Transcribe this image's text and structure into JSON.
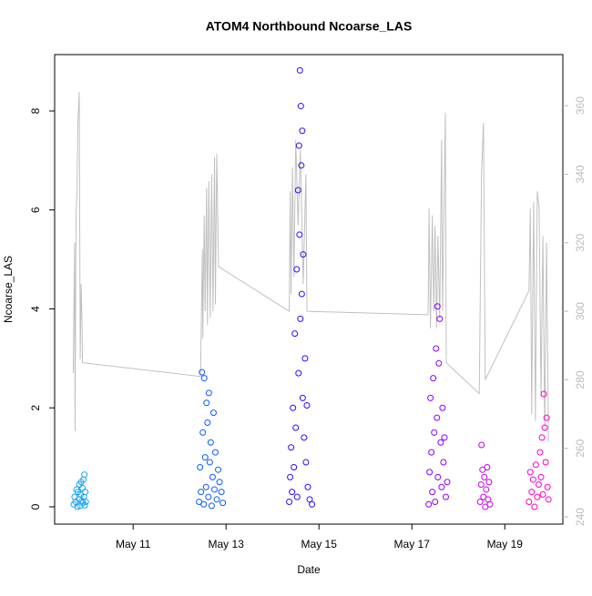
{
  "chart_data": {
    "type": "scatter",
    "title": "ATOM4 Northbound Ncoarse_LAS",
    "x_label": "Date",
    "y_label": "Ncoarse_LAS",
    "xlim": [
      9.31,
      20.25
    ],
    "ylim": [
      -0.35,
      9.14
    ],
    "y2lim": [
      237.9,
      374.9
    ],
    "xticks": [
      {
        "value": 11,
        "label": "May 11"
      },
      {
        "value": 13,
        "label": "May 13"
      },
      {
        "value": 15,
        "label": "May 15"
      },
      {
        "value": 17,
        "label": "May 17"
      },
      {
        "value": 19,
        "label": "May 19"
      }
    ],
    "yticks": [
      0,
      2,
      4,
      6,
      8
    ],
    "y2ticks": [
      240,
      260,
      280,
      300,
      320,
      340,
      360
    ],
    "series": [
      {
        "color": "#c0c0c0",
        "axis": "y2",
        "x": [
          9.71,
          9.74,
          9.75,
          9.77,
          9.79,
          9.81,
          9.84,
          9.86,
          9.88,
          9.9,
          9.91,
          12.45,
          12.47,
          12.49,
          12.5,
          12.53,
          12.55,
          12.58,
          12.6,
          12.63,
          12.66,
          12.69,
          12.72,
          12.75,
          12.77,
          12.8,
          12.84,
          14.36,
          14.38,
          14.4,
          14.43,
          14.46,
          14.5,
          14.55,
          14.6,
          14.66,
          14.72,
          14.74,
          17.35,
          17.37,
          17.4,
          17.44,
          17.47,
          17.5,
          17.53,
          17.56,
          17.6,
          17.64,
          17.66,
          17.72,
          17.74,
          18.45,
          18.5,
          18.54,
          18.58,
          19.52,
          19.55,
          19.58,
          19.62,
          19.66,
          19.7,
          19.74,
          19.78,
          19.82,
          19.86,
          19.9,
          19.94
        ],
        "values": [
          282,
          320,
          265,
          328,
          335,
          355,
          364,
          286,
          308,
          296,
          285,
          281,
          300,
          318,
          292,
          328,
          300,
          336,
          296,
          338,
          298,
          340,
          300,
          345,
          302,
          346,
          313,
          300,
          335,
          305,
          342,
          310,
          350,
          325,
          347,
          308,
          340,
          300,
          299,
          330,
          295,
          328,
          300,
          325,
          295,
          322,
          298,
          350,
          300,
          358,
          285,
          276,
          340,
          355,
          280,
          306,
          330,
          270,
          332,
          268,
          335,
          330,
          275,
          322,
          265,
          320,
          262
        ]
      },
      {
        "color": "#1aa3ee",
        "x": [
          9.72,
          9.74,
          9.76,
          9.78,
          9.8,
          9.81,
          9.83,
          9.84,
          9.86,
          9.87,
          9.88,
          9.9,
          9.91,
          9.92,
          9.93,
          9.94,
          9.95,
          9.96,
          9.97,
          9.98
        ],
        "values": [
          0.05,
          0.2,
          0.1,
          0.35,
          0.0,
          0.3,
          0.15,
          0.45,
          0.02,
          0.25,
          0.5,
          0.12,
          0.38,
          0.08,
          0.55,
          0.2,
          0.65,
          0.03,
          0.3,
          0.1
        ]
      },
      {
        "color": "#0a5cff",
        "x": [
          12.42,
          12.44,
          12.46,
          12.48,
          12.5,
          12.52,
          12.53,
          12.55,
          12.57,
          12.58,
          12.6,
          12.62,
          12.63,
          12.65,
          12.67,
          12.69,
          12.71,
          12.73,
          12.75,
          12.77,
          12.8,
          12.83,
          12.86,
          12.9,
          12.93
        ],
        "values": [
          0.1,
          0.8,
          0.3,
          2.72,
          1.5,
          0.05,
          2.6,
          1.0,
          0.4,
          2.1,
          1.7,
          0.2,
          2.3,
          0.9,
          1.3,
          0.02,
          0.6,
          1.9,
          0.35,
          1.1,
          0.15,
          0.75,
          0.5,
          0.3,
          0.08
        ]
      },
      {
        "color": "#2a0cff",
        "x": [
          14.36,
          14.38,
          14.4,
          14.42,
          14.44,
          14.46,
          14.48,
          14.5,
          14.52,
          14.53,
          14.55,
          14.56,
          14.57,
          14.58,
          14.59,
          14.6,
          14.61,
          14.62,
          14.63,
          14.64,
          14.65,
          14.66,
          14.68,
          14.7,
          14.72,
          14.74,
          14.76,
          14.8,
          14.85
        ],
        "values": [
          0.1,
          0.6,
          1.2,
          0.3,
          2.0,
          0.8,
          3.5,
          1.6,
          4.8,
          0.2,
          6.4,
          2.7,
          7.3,
          5.5,
          8.82,
          3.8,
          8.1,
          6.9,
          4.3,
          7.6,
          2.2,
          5.1,
          1.4,
          3.0,
          0.9,
          2.05,
          0.4,
          0.15,
          0.05
        ]
      },
      {
        "color": "#8a00ff",
        "x": [
          17.36,
          17.38,
          17.4,
          17.42,
          17.44,
          17.46,
          17.48,
          17.5,
          17.52,
          17.54,
          17.55,
          17.56,
          17.58,
          17.6,
          17.62,
          17.64,
          17.66,
          17.68,
          17.7,
          17.73,
          17.76
        ],
        "values": [
          0.05,
          0.7,
          2.2,
          1.1,
          0.3,
          2.6,
          1.5,
          0.1,
          3.2,
          1.8,
          4.05,
          0.6,
          2.9,
          3.8,
          1.3,
          0.4,
          2.0,
          0.9,
          1.4,
          0.2,
          0.5
        ]
      },
      {
        "color": "#c800f0",
        "x": [
          18.47,
          18.49,
          18.5,
          18.52,
          18.54,
          18.56,
          18.58,
          18.6,
          18.62,
          18.64,
          18.66,
          18.68
        ],
        "values": [
          0.1,
          0.45,
          1.25,
          0.75,
          0.2,
          0.6,
          0.0,
          0.35,
          0.8,
          0.15,
          0.5,
          0.05
        ]
      },
      {
        "color": "#ff00c8",
        "x": [
          19.52,
          19.55,
          19.58,
          19.61,
          19.64,
          19.67,
          19.7,
          19.73,
          19.76,
          19.78,
          19.8,
          19.82,
          19.84,
          19.86,
          19.88,
          19.9,
          19.92,
          19.94
        ],
        "values": [
          0.1,
          0.7,
          0.3,
          0.55,
          0.0,
          0.85,
          0.2,
          0.45,
          1.1,
          0.6,
          1.4,
          0.25,
          2.28,
          1.6,
          0.9,
          1.8,
          0.4,
          0.15
        ]
      }
    ]
  }
}
